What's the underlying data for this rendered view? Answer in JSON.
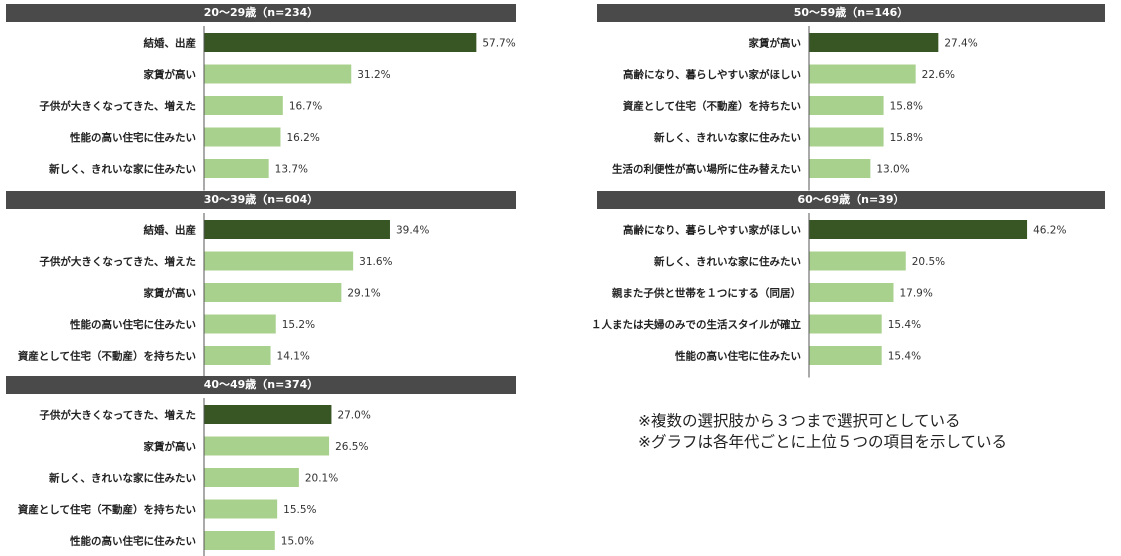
{
  "chart_data": [
    {
      "type": "bar",
      "orientation": "horizontal",
      "title": "20～29歳（n=234）",
      "categories": [
        "結婚、出産",
        "家賃が高い",
        "子供が大きくなってきた、増えた",
        "性能の高い住宅に住みたい",
        "新しく、きれいな家に住みたい"
      ],
      "values": [
        57.7,
        31.2,
        16.7,
        16.2,
        13.7
      ],
      "value_labels": [
        "57.7%",
        "31.2%",
        "16.7%",
        "16.2%",
        "13.7%"
      ],
      "xlim": [
        0,
        70
      ],
      "grid": false
    },
    {
      "type": "bar",
      "orientation": "horizontal",
      "title": "30～39歳（n=604）",
      "categories": [
        "結婚、出産",
        "子供が大きくなってきた、増えた",
        "家賃が高い",
        "性能の高い住宅に住みたい",
        "資産として住宅（不動産）を持ちたい"
      ],
      "values": [
        39.4,
        31.6,
        29.1,
        15.2,
        14.1
      ],
      "value_labels": [
        "39.4%",
        "31.6%",
        "29.1%",
        "15.2%",
        "14.1%"
      ],
      "xlim": [
        0,
        70
      ],
      "grid": false
    },
    {
      "type": "bar",
      "orientation": "horizontal",
      "title": "40～49歳（n=374）",
      "categories": [
        "子供が大きくなってきた、増えた",
        "家賃が高い",
        "新しく、きれいな家に住みたい",
        "資産として住宅（不動産）を持ちたい",
        "性能の高い住宅に住みたい"
      ],
      "values": [
        27.0,
        26.5,
        20.1,
        15.5,
        15.0
      ],
      "value_labels": [
        "27.0%",
        "26.5%",
        "20.1%",
        "15.5%",
        "15.0%"
      ],
      "xlim": [
        0,
        70
      ],
      "grid": false
    },
    {
      "type": "bar",
      "orientation": "horizontal",
      "title": "50～59歳（n=146）",
      "categories": [
        "家賃が高い",
        "高齢になり、暮らしやすい家がほしい",
        "資産として住宅（不動産）を持ちたい",
        "新しく、きれいな家に住みたい",
        "生活の利便性が高い場所に住み替えたい"
      ],
      "values": [
        27.4,
        22.6,
        15.8,
        15.8,
        13.0
      ],
      "value_labels": [
        "27.4%",
        "22.6%",
        "15.8%",
        "15.8%",
        "13.0%"
      ],
      "xlim": [
        0,
        70
      ],
      "grid": false
    },
    {
      "type": "bar",
      "orientation": "horizontal",
      "title": "60～69歳（n=39）",
      "categories": [
        "高齢になり、暮らしやすい家がほしい",
        "新しく、きれいな家に住みたい",
        "親また子供と世帯を１つにする（同居）",
        "１人または夫婦のみでの生活スタイルが確立",
        "性能の高い住宅に住みたい"
      ],
      "values": [
        46.2,
        20.5,
        17.9,
        15.4,
        15.4
      ],
      "value_labels": [
        "46.2%",
        "20.5%",
        "17.9%",
        "15.4%",
        "15.4%"
      ],
      "xlim": [
        0,
        70
      ],
      "grid": false
    }
  ],
  "colors": {
    "top_bar": "#375623",
    "other_bar": "#a9d18e",
    "header_bg": "#4a4a4a",
    "header_text": "#ffffff",
    "axis": "#555555"
  },
  "notes": [
    "※複数の選択肢から３つまで選択可としている",
    "※グラフは各年代ごとに上位５つの項目を示している"
  ]
}
